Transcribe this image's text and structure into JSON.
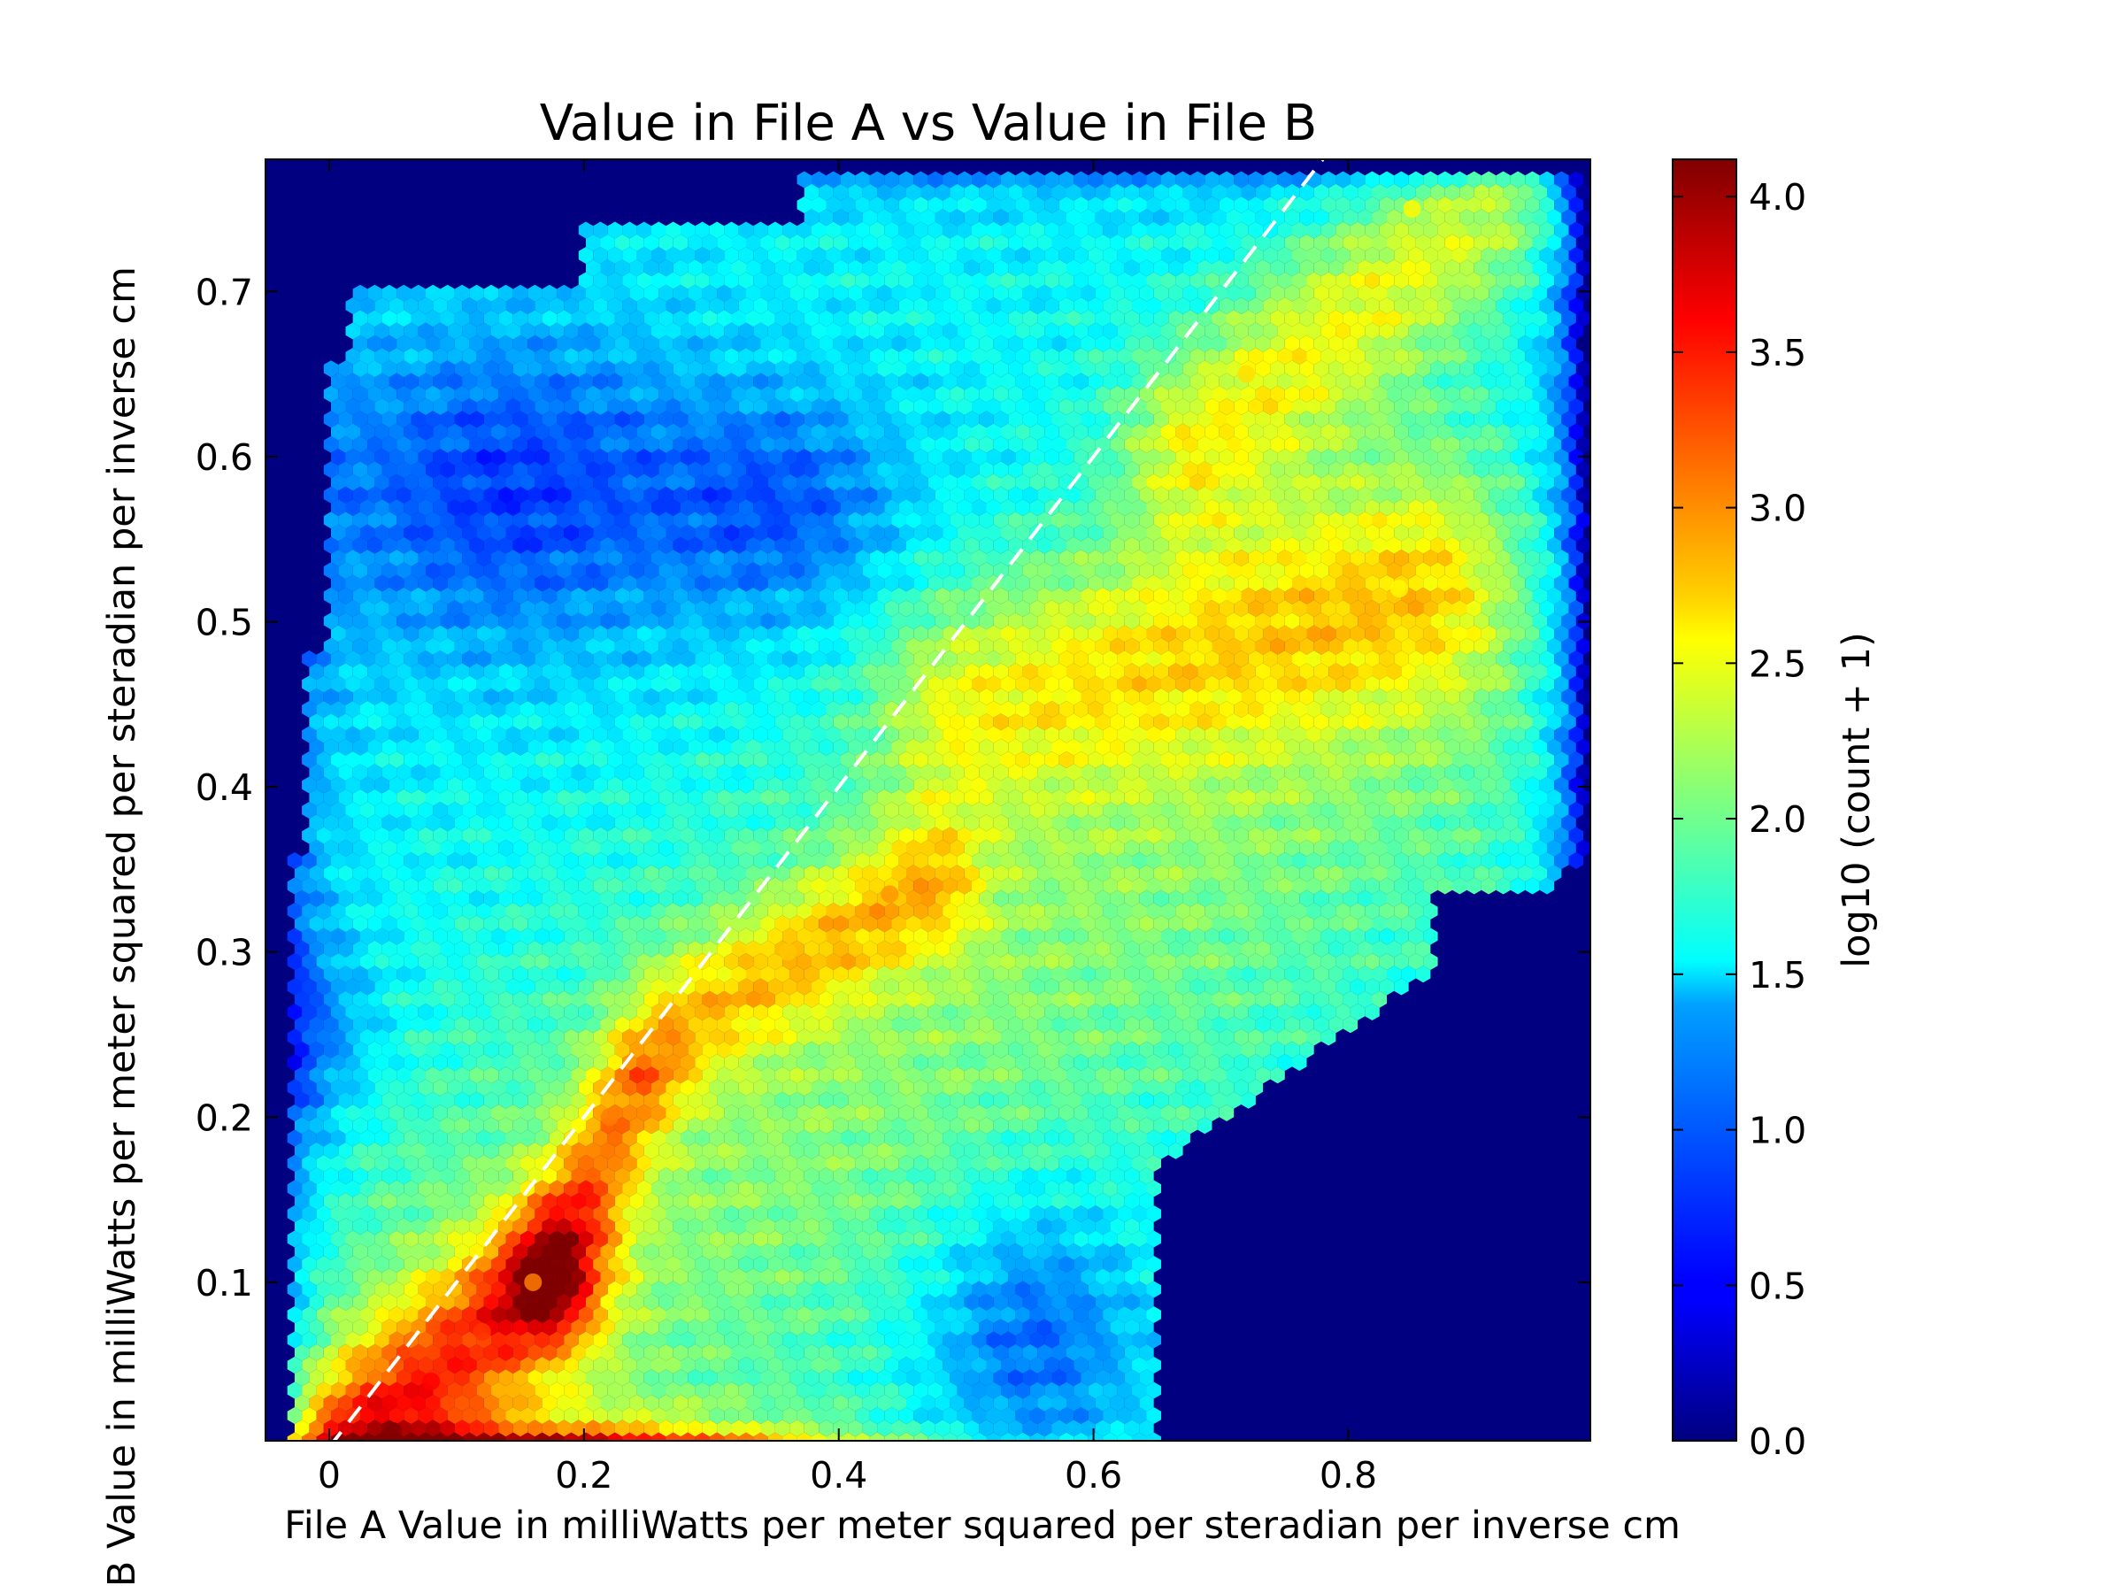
{
  "chart_data": {
    "type": "heatmap",
    "subtype": "hexbin",
    "title": "Value in File A vs Value in File B",
    "xlabel": "File A Value in milliWatts per meter squared per steradian per inverse cm",
    "ylabel": "File B Value in milliWatts per meter squared per steradian per inverse cm",
    "xlim": [
      -0.05,
      0.99
    ],
    "ylim": [
      0.004,
      0.78
    ],
    "xticks": [
      0,
      0.2,
      0.4,
      0.6,
      0.8
    ],
    "xtick_labels": [
      "0",
      "0.2",
      "0.4",
      "0.6",
      "0.8"
    ],
    "yticks": [
      0.1,
      0.2,
      0.3,
      0.4,
      0.5,
      0.6,
      0.7
    ],
    "ytick_labels": [
      "0.1",
      "0.2",
      "0.3",
      "0.4",
      "0.5",
      "0.6",
      "0.7"
    ],
    "colorbar": {
      "label": "log10 (count + 1)",
      "min": 0.0,
      "max": 4.12,
      "ticks": [
        0.0,
        0.5,
        1.0,
        1.5,
        2.0,
        2.5,
        3.0,
        3.5,
        4.0
      ],
      "tick_labels": [
        "0.0",
        "0.5",
        "1.0",
        "1.5",
        "2.0",
        "2.5",
        "3.0",
        "3.5",
        "4.0"
      ],
      "colormap": "jet"
    },
    "reference_line": {
      "style": "dashed",
      "color": "#ffffff",
      "from": [
        0,
        0
      ],
      "to": [
        0.78,
        0.78
      ]
    },
    "background_color": "#000080",
    "hotspots": [
      {
        "x": 0.05,
        "y": 0.01,
        "value": 4.1
      },
      {
        "x": 0.08,
        "y": 0.04,
        "value": 3.6
      },
      {
        "x": 0.12,
        "y": 0.07,
        "value": 3.4
      },
      {
        "x": 0.16,
        "y": 0.1,
        "value": 3.1
      },
      {
        "x": 0.22,
        "y": 0.2,
        "value": 3.1
      },
      {
        "x": 0.44,
        "y": 0.335,
        "value": 3.0
      },
      {
        "x": 0.36,
        "y": 0.3,
        "value": 2.8
      },
      {
        "x": 0.72,
        "y": 0.65,
        "value": 2.7
      },
      {
        "x": 0.85,
        "y": 0.75,
        "value": 2.6
      },
      {
        "x": 0.84,
        "y": 0.52,
        "value": 2.6
      }
    ]
  }
}
